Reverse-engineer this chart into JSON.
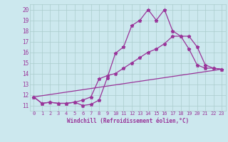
{
  "xlabel": "Windchill (Refroidissement éolien,°C)",
  "bg_color": "#cce8ee",
  "grid_color": "#aacccc",
  "line_color": "#993399",
  "xlim": [
    -0.5,
    23.5
  ],
  "ylim": [
    10.5,
    20.5
  ],
  "yticks": [
    11,
    12,
    13,
    14,
    15,
    16,
    17,
    18,
    19,
    20
  ],
  "xticks": [
    0,
    1,
    2,
    3,
    4,
    5,
    6,
    7,
    8,
    9,
    10,
    11,
    12,
    13,
    14,
    15,
    16,
    17,
    18,
    19,
    20,
    21,
    22,
    23
  ],
  "series1_x": [
    0,
    1,
    2,
    3,
    4,
    5,
    6,
    7,
    8,
    9,
    10,
    11,
    12,
    13,
    14,
    15,
    16,
    17,
    18,
    19,
    20,
    21,
    22,
    23
  ],
  "series1_y": [
    11.8,
    11.2,
    11.3,
    11.2,
    11.2,
    11.3,
    11.0,
    11.1,
    11.5,
    13.6,
    15.9,
    16.5,
    18.5,
    19.0,
    20.0,
    19.0,
    20.0,
    18.0,
    17.5,
    16.3,
    14.8,
    14.5,
    14.5,
    14.4
  ],
  "series2_x": [
    0,
    1,
    2,
    3,
    4,
    5,
    6,
    7,
    8,
    9,
    10,
    11,
    12,
    13,
    14,
    15,
    16,
    17,
    18,
    19,
    20,
    21,
    22,
    23
  ],
  "series2_y": [
    11.8,
    11.2,
    11.3,
    11.2,
    11.2,
    11.3,
    11.5,
    11.8,
    13.5,
    13.8,
    14.0,
    14.5,
    15.0,
    15.5,
    16.0,
    16.3,
    16.8,
    17.5,
    17.5,
    17.5,
    16.5,
    14.8,
    14.5,
    14.4
  ],
  "series3_x": [
    0,
    23
  ],
  "series3_y": [
    11.8,
    14.4
  ]
}
